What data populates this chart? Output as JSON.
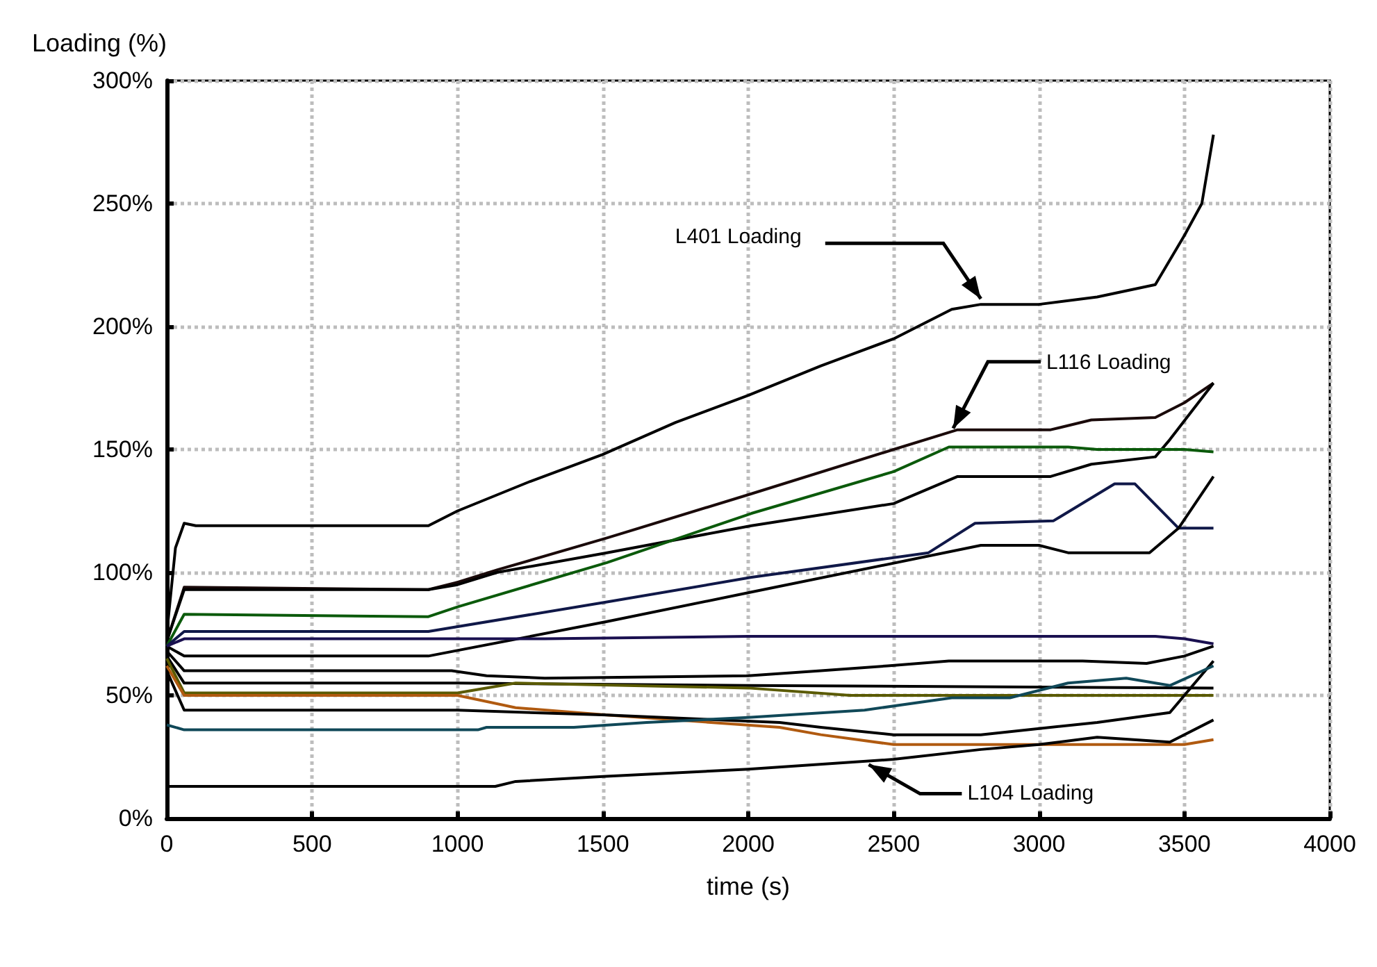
{
  "chart_data": {
    "type": "line",
    "xlabel": "time (s)",
    "ylabel": "Loading (%)",
    "xlim": [
      0,
      4000
    ],
    "xticks": [
      0,
      500,
      1000,
      1500,
      2000,
      2500,
      3000,
      3500,
      4000
    ],
    "ylim": [
      0,
      300
    ],
    "yticks": [
      {
        "value": 0,
        "label": "0%"
      },
      {
        "value": 50,
        "label": "50%"
      },
      {
        "value": 100,
        "label": "100%"
      },
      {
        "value": 150,
        "label": "150%"
      },
      {
        "value": 200,
        "label": "200%"
      },
      {
        "value": 250,
        "label": "250%"
      },
      {
        "value": 300,
        "label": "300%"
      }
    ],
    "grid": true,
    "annotations": [
      {
        "text": "L401 Loading",
        "x": 2800,
        "y": 209
      },
      {
        "text": "L116 Loading",
        "x": 2700,
        "y": 158
      },
      {
        "text": "L104 Loading",
        "x": 2400,
        "y": 23
      }
    ],
    "series": [
      {
        "color": "#000000",
        "x": [
          0,
          30,
          60,
          100,
          900,
          1000,
          1250,
          1500,
          1750,
          2000,
          2250,
          2500,
          2700,
          2800,
          3000,
          3200,
          3400,
          3500,
          3560,
          3600
        ],
        "values": [
          75,
          110,
          120,
          119,
          119,
          125,
          137,
          148,
          161,
          172,
          184,
          195,
          207,
          209,
          209,
          212,
          217,
          237,
          250,
          278
        ]
      },
      {
        "color": "#1a0a0a",
        "x": [
          0,
          60,
          900,
          1000,
          1136,
          1514,
          2011,
          2500,
          2720,
          3040,
          3180,
          3400,
          3500,
          3600
        ],
        "values": [
          72,
          94,
          93,
          96,
          101,
          114,
          132,
          150,
          158,
          158,
          162,
          163,
          169,
          177
        ]
      },
      {
        "color": "#000000",
        "x": [
          0,
          60,
          900,
          1000,
          1136,
          1514,
          2011,
          2500,
          2720,
          3040,
          3180,
          3400,
          3450,
          3600
        ],
        "values": [
          72,
          93,
          93,
          95,
          100,
          108,
          119,
          128,
          139,
          139,
          144,
          147,
          154,
          177
        ]
      },
      {
        "color": "#0b5a0b",
        "x": [
          0,
          60,
          900,
          1000,
          1514,
          2011,
          2500,
          2690,
          3100,
          3200,
          3500,
          3600
        ],
        "values": [
          70,
          83,
          82,
          86,
          104,
          124,
          141,
          151,
          151,
          150,
          150,
          149
        ]
      },
      {
        "color": "#101848",
        "x": [
          0,
          60,
          900,
          1514,
          2011,
          2620,
          2780,
          3050,
          3260,
          3330,
          3480,
          3600
        ],
        "values": [
          70,
          76,
          76,
          88,
          98,
          108,
          120,
          121,
          136,
          136,
          118,
          118
        ]
      },
      {
        "color": "#000000",
        "x": [
          0,
          60,
          900,
          1514,
          2011,
          2800,
          3000,
          3100,
          3380,
          3480,
          3600
        ],
        "values": [
          70,
          66,
          66,
          80,
          92,
          111,
          111,
          108,
          108,
          118,
          139
        ]
      },
      {
        "color": "#1a1050",
        "x": [
          0,
          60,
          1300,
          2000,
          2400,
          2700,
          3200,
          3400,
          3500,
          3600
        ],
        "values": [
          70,
          73,
          73,
          74,
          74,
          74,
          74,
          74,
          73,
          71
        ]
      },
      {
        "color": "#000000",
        "x": [
          0,
          60,
          980,
          1100,
          1300,
          2000,
          2250,
          2480,
          2690,
          3150,
          3370,
          3500,
          3600
        ],
        "values": [
          68,
          60,
          60,
          58,
          57,
          58,
          60,
          62,
          64,
          64,
          63,
          66,
          70
        ]
      },
      {
        "color": "#000000",
        "x": [
          0,
          60,
          1000,
          2000,
          3600
        ],
        "values": [
          66,
          55,
          55,
          54,
          53
        ]
      },
      {
        "color": "#5a5a00",
        "x": [
          0,
          60,
          1000,
          1200,
          2000,
          2350,
          3600
        ],
        "values": [
          65,
          51,
          51,
          55,
          53,
          50,
          50
        ]
      },
      {
        "color": "#b05a10",
        "x": [
          0,
          60,
          1000,
          1200,
          1514,
          2108,
          2250,
          2500,
          3000,
          3500,
          3600
        ],
        "values": [
          62,
          50,
          50,
          45,
          42,
          37,
          34,
          30,
          30,
          30,
          32
        ]
      },
      {
        "color": "#000000",
        "x": [
          0,
          60,
          1000,
          1514,
          2108,
          2250,
          2500,
          2800,
          3200,
          3450,
          3600
        ],
        "values": [
          60,
          44,
          44,
          42,
          39,
          37,
          34,
          34,
          39,
          43,
          64
        ]
      },
      {
        "color": "#104858",
        "x": [
          0,
          60,
          1070,
          1100,
          1400,
          1650,
          2000,
          2400,
          2700,
          2900,
          3100,
          3300,
          3450,
          3600
        ],
        "values": [
          38,
          36,
          36,
          37,
          37,
          39,
          41,
          44,
          49,
          49,
          55,
          57,
          54,
          62
        ]
      },
      {
        "color": "#000000",
        "x": [
          0,
          1130,
          1200,
          1500,
          2000,
          2500,
          2800,
          3000,
          3200,
          3450,
          3600
        ],
        "values": [
          13,
          13,
          15,
          17,
          20,
          24,
          28,
          30,
          33,
          31,
          40
        ]
      }
    ]
  }
}
